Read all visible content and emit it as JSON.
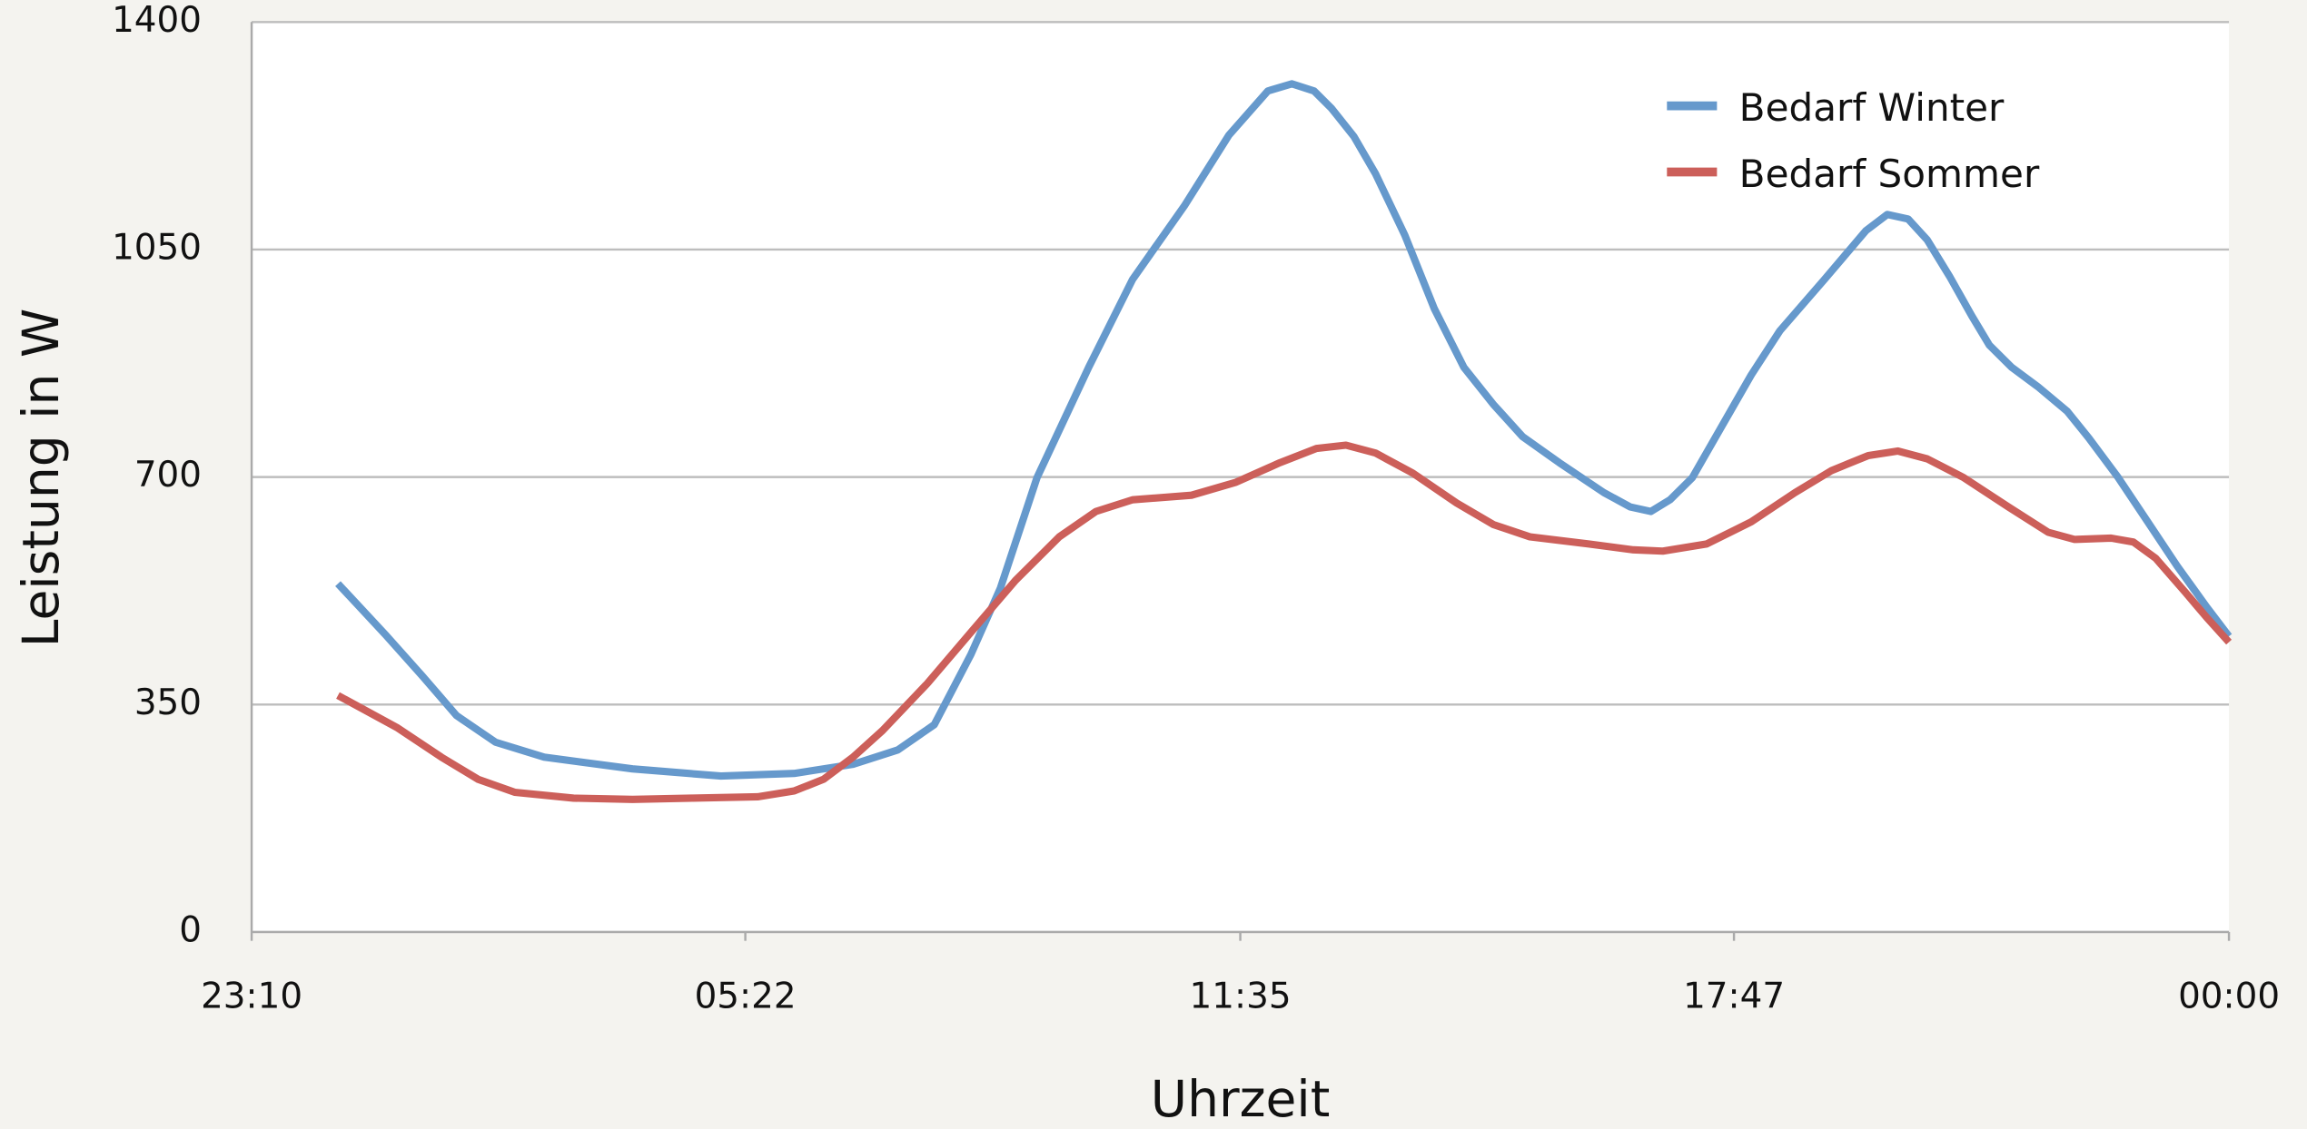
{
  "chart_data": {
    "type": "line",
    "x_label": "Uhrzeit",
    "y_label": "Leistung in W",
    "xlim": [
      -0.8333,
      24
    ],
    "xticks": [
      {
        "value": -0.8333,
        "label": "23:10"
      },
      {
        "value": 5.3667,
        "label": "05:22"
      },
      {
        "value": 11.5833,
        "label": "11:35"
      },
      {
        "value": 17.7833,
        "label": "17:47"
      },
      {
        "value": 24,
        "label": "00:00"
      }
    ],
    "ylim": [
      0,
      1400
    ],
    "yticks": [
      0,
      350,
      700,
      1050,
      1400
    ],
    "grid": true,
    "legend": "top-right",
    "series": [
      {
        "name": "Bedarf Winter",
        "color": "#6699cc",
        "x": [
          0.25,
          0.85,
          1.31,
          1.74,
          2.23,
          2.84,
          3.95,
          5.06,
          5.98,
          6.72,
          7.28,
          7.74,
          8.2,
          8.57,
          9.03,
          9.68,
          10.23,
          10.88,
          11.44,
          11.93,
          12.23,
          12.51,
          12.73,
          13.01,
          13.28,
          13.65,
          14.02,
          14.39,
          14.76,
          15.13,
          15.59,
          16.15,
          16.48,
          16.74,
          16.98,
          17.26,
          17.63,
          18.0,
          18.36,
          18.92,
          19.44,
          19.71,
          19.97,
          20.21,
          20.49,
          20.77,
          20.99,
          21.27,
          21.6,
          21.97,
          22.24,
          22.61,
          22.98,
          23.35,
          23.72,
          24.0
        ],
        "values": [
          536,
          457,
          394,
          333,
          292,
          269,
          251,
          240,
          244,
          258,
          280,
          319,
          427,
          529,
          699,
          869,
          1004,
          1117,
          1226,
          1294,
          1305,
          1294,
          1267,
          1224,
          1167,
          1072,
          959,
          869,
          812,
          762,
          722,
          676,
          654,
          647,
          665,
          699,
          778,
          857,
          925,
          1004,
          1079,
          1104,
          1097,
          1065,
          1009,
          948,
          903,
          869,
          839,
          801,
          760,
          699,
          631,
          563,
          500,
          455
        ]
      },
      {
        "name": "Bedarf Sommer",
        "color": "#cc5f5a",
        "x": [
          0.25,
          1.0,
          1.55,
          2.01,
          2.47,
          3.21,
          3.95,
          4.69,
          5.52,
          5.98,
          6.35,
          6.72,
          7.09,
          7.65,
          8.2,
          8.76,
          9.31,
          9.77,
          10.23,
          10.97,
          11.53,
          12.08,
          12.54,
          12.91,
          13.28,
          13.75,
          14.3,
          14.76,
          15.22,
          15.96,
          16.52,
          16.89,
          17.44,
          18.0,
          18.55,
          19.01,
          19.47,
          19.84,
          20.21,
          20.67,
          21.23,
          21.73,
          22.06,
          22.52,
          22.8,
          23.08,
          23.45,
          23.72,
          24.0
        ],
        "values": [
          364,
          314,
          269,
          235,
          215,
          206,
          204,
          206,
          208,
          217,
          235,
          269,
          310,
          382,
          461,
          541,
          608,
          647,
          665,
          672,
          692,
          722,
          744,
          749,
          737,
          706,
          660,
          627,
          608,
          597,
          588,
          586,
          597,
          631,
          676,
          710,
          733,
          740,
          728,
          699,
          654,
          615,
          604,
          606,
          600,
          575,
          523,
          484,
          446
        ]
      }
    ]
  }
}
